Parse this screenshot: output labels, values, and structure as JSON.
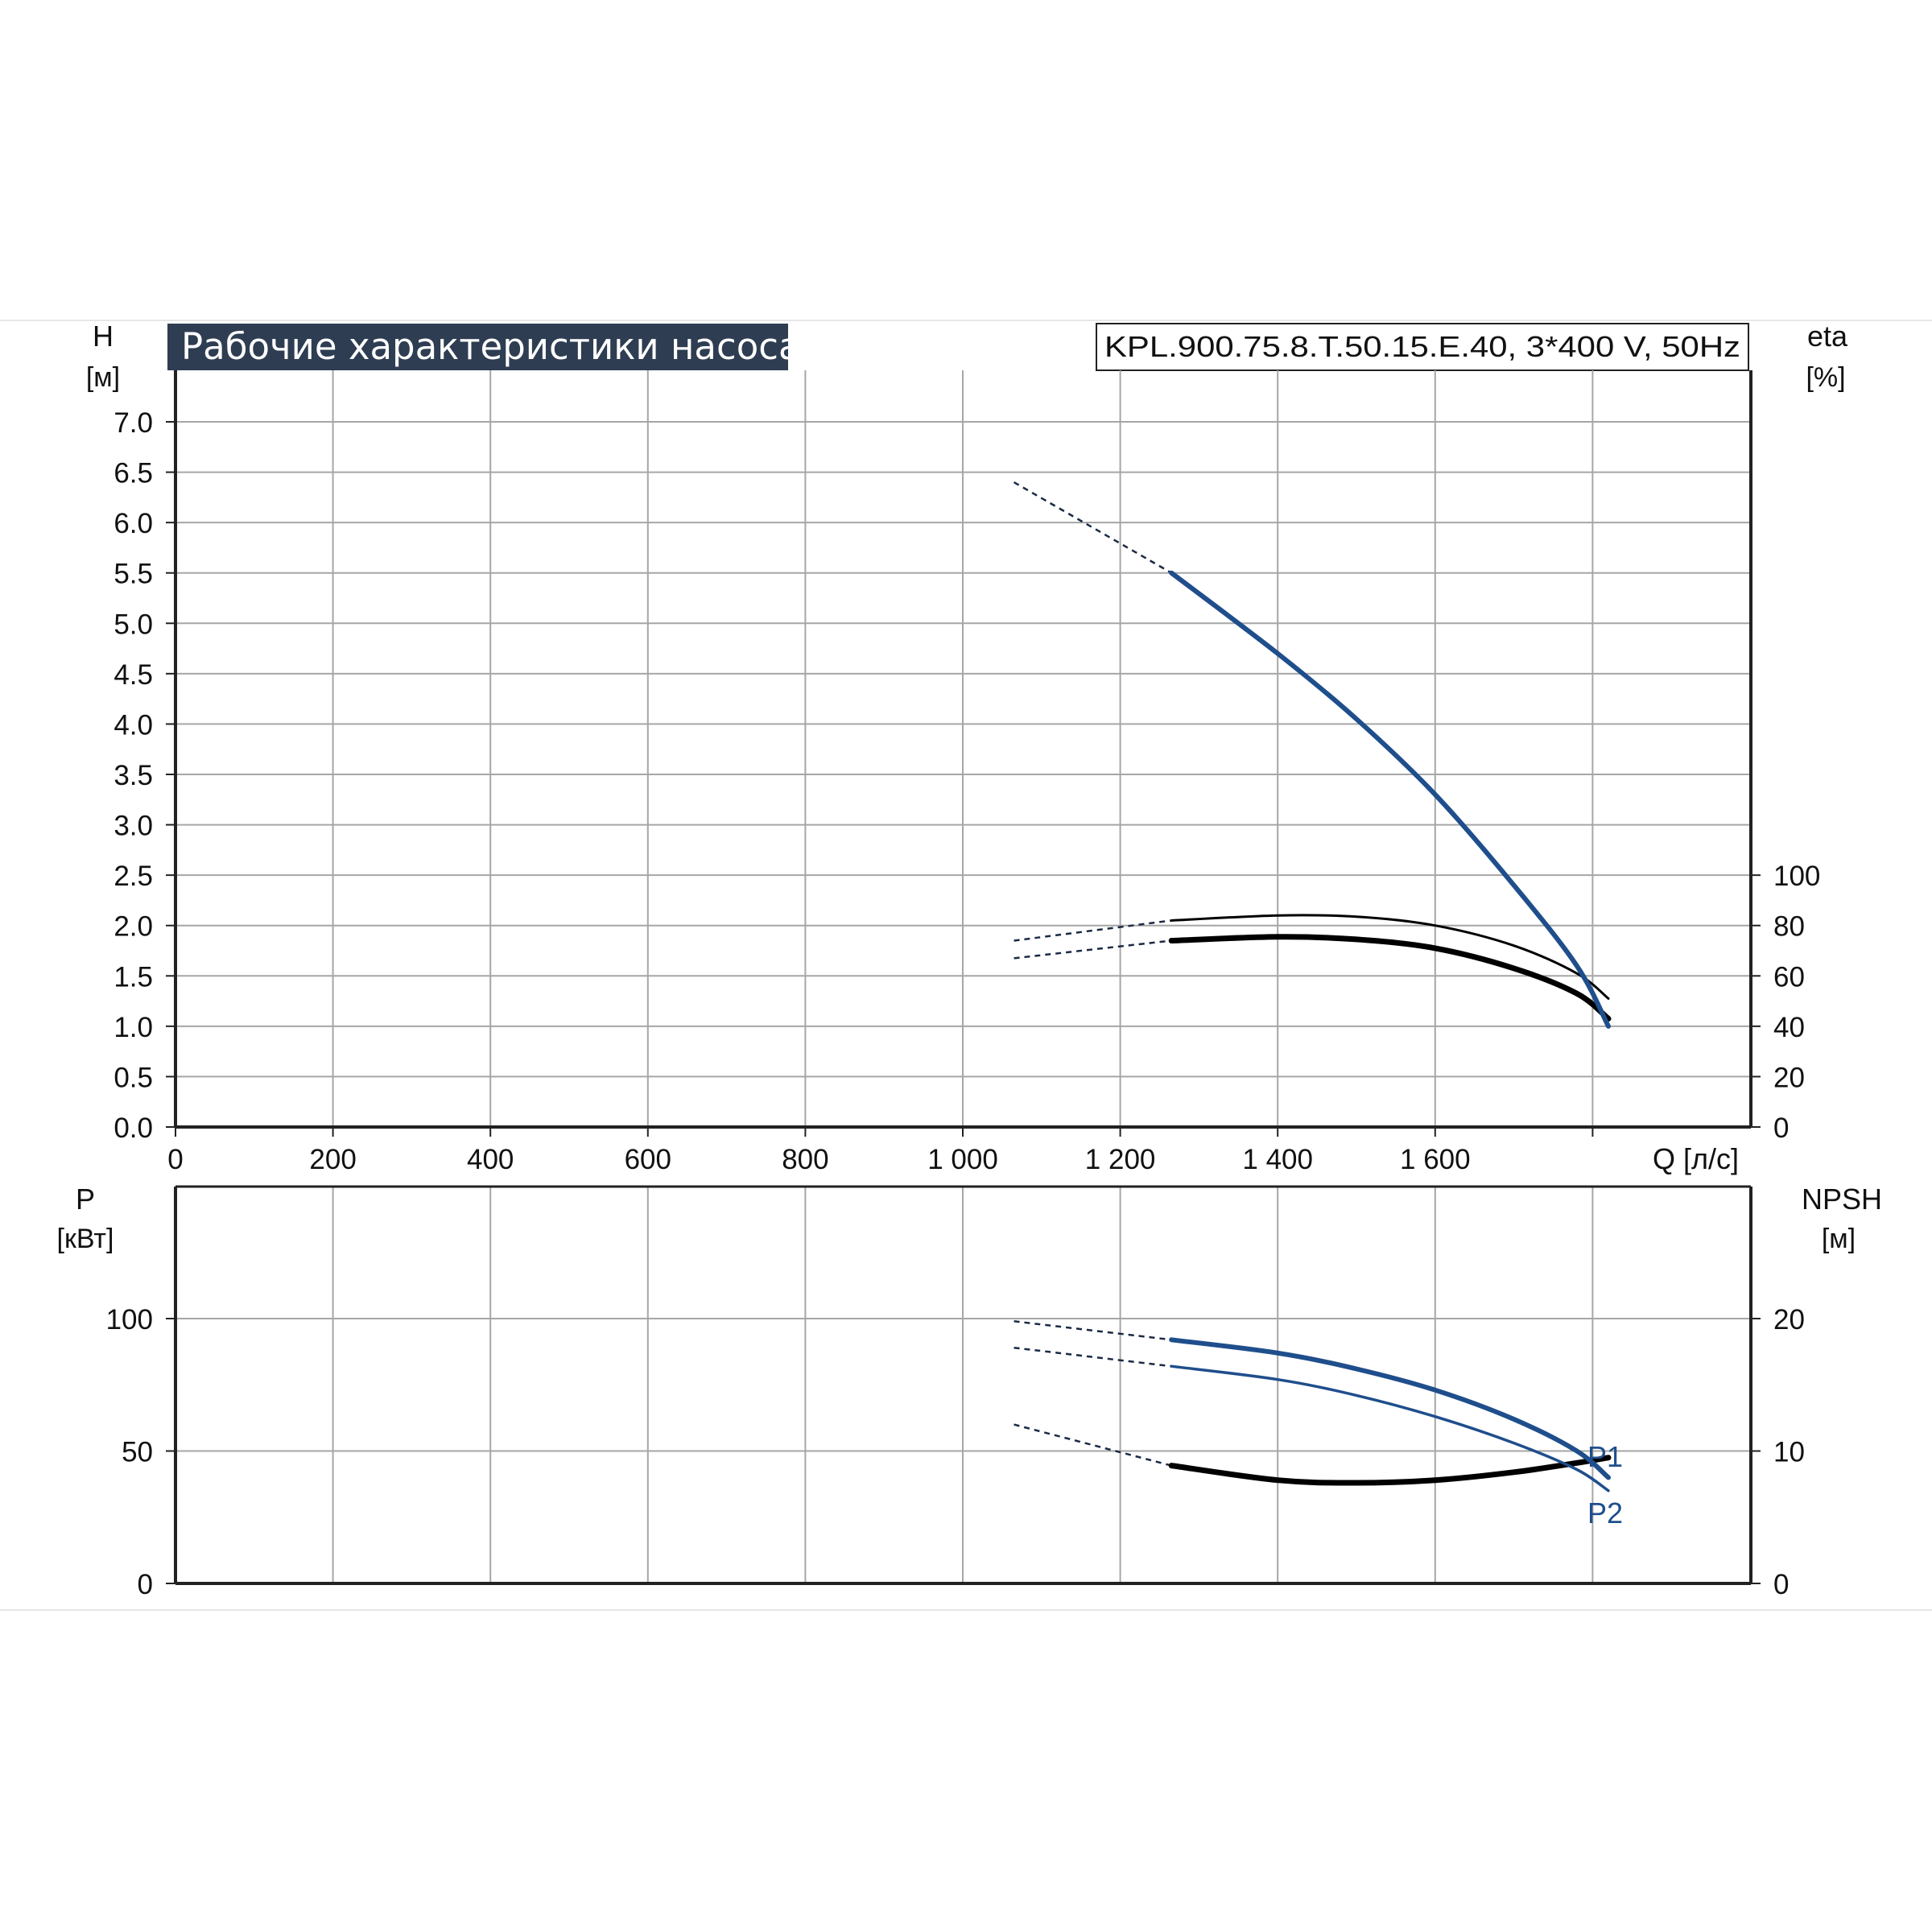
{
  "title": "Рабочие характеристики насоса",
  "model": "KPL.900.75.8.T.50.15.E.40, 3*400 V, 50Hz",
  "colors": {
    "blue": "#1f4e8c",
    "black": "#000000",
    "title_bg": "#2e3d52",
    "grid": "#a6a6a6"
  },
  "chart_data": [
    {
      "id": "head-efficiency",
      "type": "line",
      "x_axis": {
        "label": "Q [л/с]",
        "range": [
          0,
          2000
        ],
        "ticks": [
          0,
          200,
          400,
          600,
          800,
          1000,
          1200,
          1400,
          1600
        ],
        "tick_labels": [
          "0",
          "200",
          "400",
          "600",
          "800",
          "1 000",
          "1 200",
          "1 400",
          "1 600"
        ]
      },
      "y_left": {
        "label_top": "H",
        "label_unit": "[м]",
        "range": [
          0,
          7.0
        ],
        "ticks": [
          0,
          0.5,
          1.0,
          1.5,
          2.0,
          2.5,
          3.0,
          3.5,
          4.0,
          4.5,
          5.0,
          5.5,
          6.0,
          6.5,
          7.0
        ],
        "tick_labels": [
          "0.0",
          "0.5",
          "1.0",
          "1.5",
          "2.0",
          "2.5",
          "3.0",
          "3.5",
          "4.0",
          "4.5",
          "5.0",
          "5.5",
          "6.0",
          "6.5",
          "7.0"
        ]
      },
      "y_right": {
        "label_top": "eta",
        "label_unit": "[%]",
        "range": [
          0,
          140
        ],
        "ticks": [
          0,
          20,
          40,
          60,
          80,
          100
        ],
        "tick_labels": [
          "0",
          "20",
          "40",
          "60",
          "80",
          "100"
        ]
      },
      "series": [
        {
          "axis": "left",
          "color": "blue",
          "width": 6,
          "dashed_points": [
            [
              1065,
              6.4
            ],
            [
              1265,
              5.5
            ]
          ],
          "points": [
            [
              1265,
              5.5
            ],
            [
              1400,
              4.7
            ],
            [
              1500,
              4.05
            ],
            [
              1600,
              3.3
            ],
            [
              1700,
              2.4
            ],
            [
              1780,
              1.6
            ],
            [
              1820,
              1.0
            ]
          ]
        },
        {
          "axis": "right",
          "color": "black",
          "width": 3,
          "dashed_points": [
            [
              1065,
              74
            ],
            [
              1265,
              82
            ]
          ],
          "points": [
            [
              1265,
              82
            ],
            [
              1400,
              84
            ],
            [
              1500,
              83.5
            ],
            [
              1600,
              80
            ],
            [
              1700,
              72
            ],
            [
              1780,
              61
            ],
            [
              1820,
              51
            ]
          ]
        },
        {
          "axis": "right",
          "color": "black",
          "width": 7,
          "dashed_points": [
            [
              1065,
              67
            ],
            [
              1265,
              74
            ]
          ],
          "points": [
            [
              1265,
              74
            ],
            [
              1400,
              75.5
            ],
            [
              1500,
              74.5
            ],
            [
              1600,
              71
            ],
            [
              1700,
              63
            ],
            [
              1780,
              53
            ],
            [
              1820,
              43
            ]
          ]
        }
      ]
    },
    {
      "id": "power-npsh",
      "type": "line",
      "x_axis": {
        "range": [
          0,
          2000
        ]
      },
      "y_left": {
        "label_top": "P",
        "label_unit": "[кВт]",
        "range": [
          0,
          150
        ],
        "ticks": [
          0,
          50,
          100
        ],
        "tick_labels": [
          "0",
          "50",
          "100"
        ]
      },
      "y_right": {
        "label_top": "NPSH",
        "label_unit": "[м]",
        "range": [
          0,
          30
        ],
        "ticks": [
          0,
          10,
          20
        ],
        "tick_labels": [
          "0",
          "10",
          "20"
        ]
      },
      "series": [
        {
          "name": "P1",
          "axis": "left",
          "color": "blue",
          "width": 6,
          "dashed_points": [
            [
              1065,
              99
            ],
            [
              1265,
              92
            ]
          ],
          "points": [
            [
              1265,
              92
            ],
            [
              1400,
              87
            ],
            [
              1500,
              81
            ],
            [
              1600,
              73
            ],
            [
              1700,
              62
            ],
            [
              1780,
              50
            ],
            [
              1820,
              40
            ]
          ]
        },
        {
          "name": "P2",
          "axis": "left",
          "color": "blue",
          "width": 3.5,
          "dashed_points": [
            [
              1065,
              89
            ],
            [
              1265,
              82
            ]
          ],
          "points": [
            [
              1265,
              82
            ],
            [
              1400,
              77
            ],
            [
              1500,
              71
            ],
            [
              1600,
              63
            ],
            [
              1700,
              53
            ],
            [
              1780,
              43
            ],
            [
              1820,
              35
            ]
          ]
        },
        {
          "axis": "right",
          "color": "black",
          "width": 7,
          "dashed_points": [
            [
              1065,
              12
            ],
            [
              1265,
              8.9
            ]
          ],
          "points": [
            [
              1265,
              8.9
            ],
            [
              1400,
              7.8
            ],
            [
              1500,
              7.6
            ],
            [
              1600,
              7.8
            ],
            [
              1700,
              8.4
            ],
            [
              1780,
              9.1
            ],
            [
              1820,
              9.5
            ]
          ]
        }
      ]
    }
  ]
}
